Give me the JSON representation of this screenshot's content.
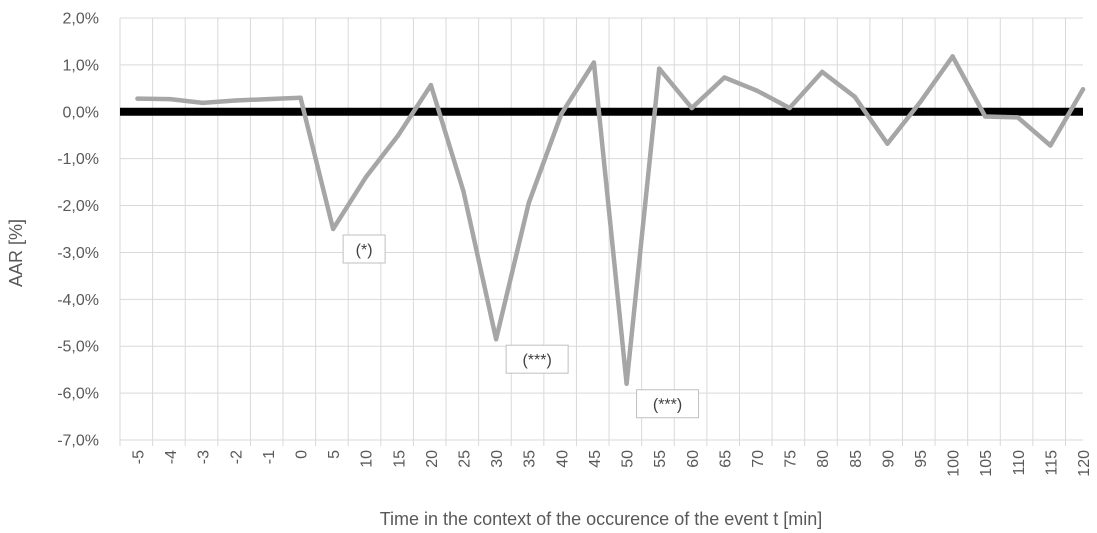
{
  "chart_data": {
    "type": "line",
    "title": "",
    "xlabel": "Time in the context of the occurence of the event t [min]",
    "ylabel": "AAR [%]",
    "ylim": [
      -7.0,
      2.0
    ],
    "ytick_labels": [
      "2,0%",
      "1,0%",
      "0,0%",
      "-1,0%",
      "-2,0%",
      "-3,0%",
      "-4,0%",
      "-5,0%",
      "-6,0%",
      "-7,0%"
    ],
    "grid": true,
    "legend": "none",
    "categories": [
      "-5",
      "-4",
      "-3",
      "-2",
      "-1",
      "0",
      "5",
      "10",
      "15",
      "20",
      "25",
      "30",
      "35",
      "40",
      "45",
      "50",
      "55",
      "60",
      "65",
      "70",
      "75",
      "80",
      "85",
      "90",
      "95",
      "100",
      "105",
      "110",
      "115",
      "120"
    ],
    "series": [
      {
        "name": "",
        "color": "#a6a6a6",
        "values": [
          0.28,
          0.27,
          0.19,
          0.24,
          0.27,
          0.3,
          -2.5,
          -1.4,
          -0.5,
          0.57,
          -1.7,
          -4.85,
          -1.95,
          -0.05,
          1.05,
          -5.8,
          0.92,
          0.08,
          0.73,
          0.45,
          0.08,
          0.85,
          0.32,
          -0.68,
          0.2,
          1.18,
          -0.1,
          -0.12,
          -0.72,
          0.48
        ]
      }
    ],
    "reference_line": {
      "value": 0.0,
      "color": "#000000"
    },
    "annotations": [
      {
        "text": "(*)",
        "category": "5",
        "value": -2.5
      },
      {
        "text": "(***)",
        "category": "30",
        "value": -4.85
      },
      {
        "text": "(***)",
        "category": "50",
        "value": -5.8
      }
    ]
  },
  "colors": {
    "gridline": "#d9d9d9",
    "axis_text": "#595959"
  }
}
